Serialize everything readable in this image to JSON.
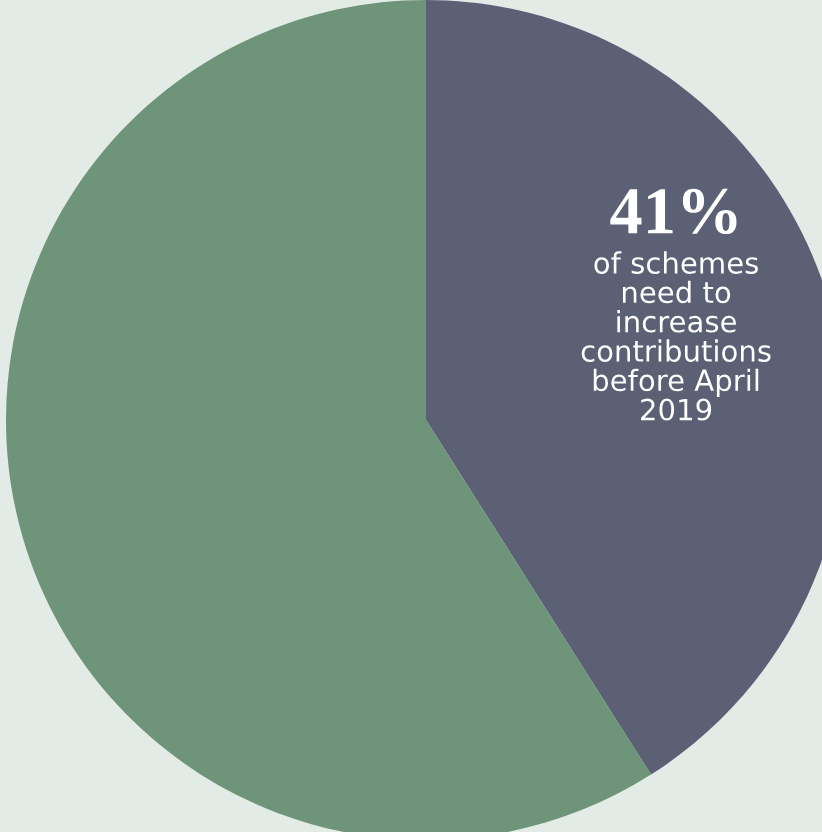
{
  "chart_data": {
    "type": "pie",
    "categories": [
      null,
      null
    ],
    "values": [
      41,
      59
    ],
    "colors": [
      "#5b6075",
      "#6e9479"
    ],
    "value_labels": [
      "41%",
      null
    ],
    "annotations": [
      "of schemes\nneed to\nincrease\ncontributions\nbefore April\n2019"
    ]
  }
}
